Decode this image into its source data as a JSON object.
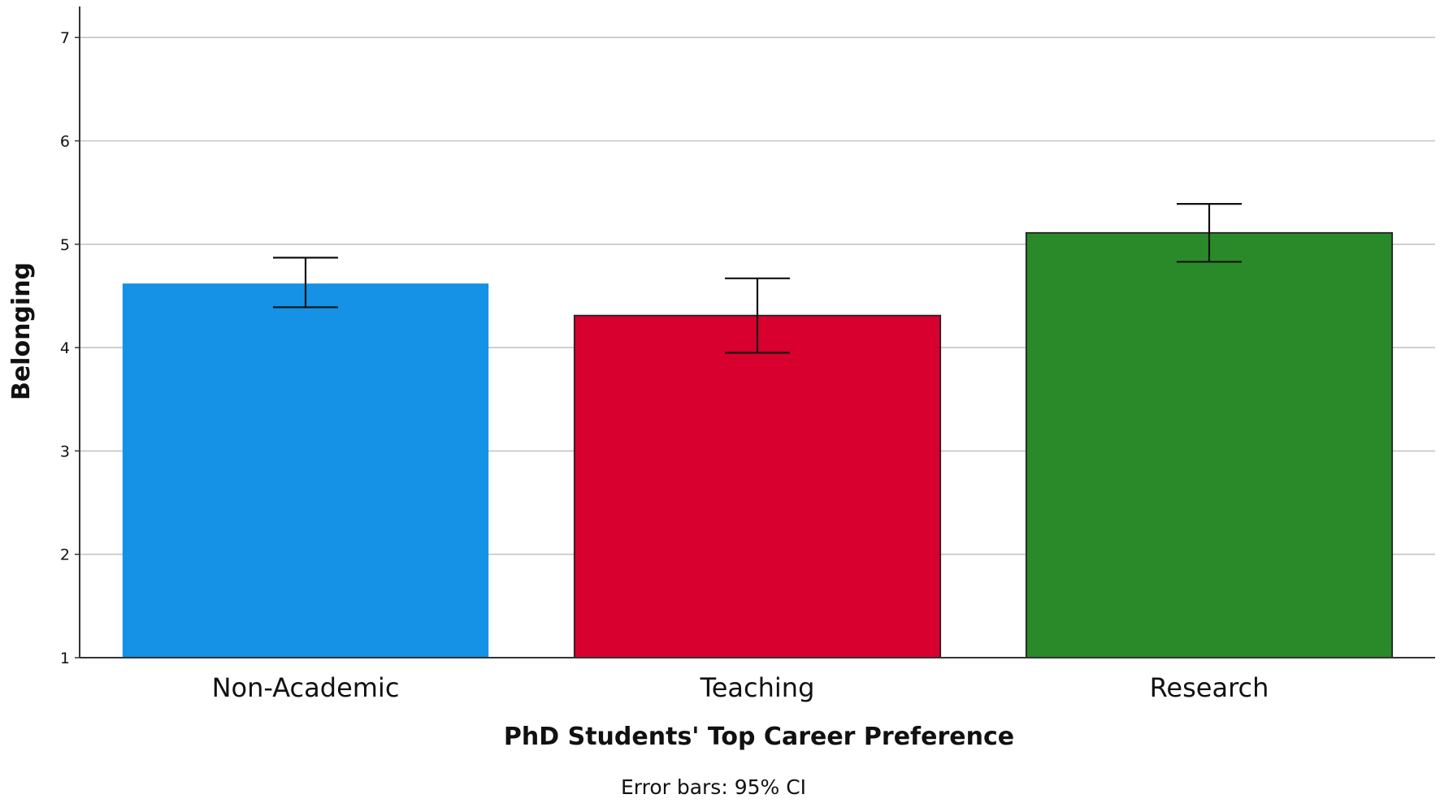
{
  "chart_data": {
    "type": "bar",
    "categories": [
      "Non-Academic",
      "Teaching",
      "Research"
    ],
    "values": [
      4.62,
      4.31,
      5.11
    ],
    "ci_lower": [
      4.39,
      3.95,
      4.83
    ],
    "ci_upper": [
      4.87,
      4.67,
      5.39
    ],
    "colors": [
      "#1591e5",
      "#d8002f",
      "#2a8a2a"
    ],
    "xlabel": "PhD Students' Top Career Preference",
    "ylabel": "Belonging",
    "ylim": [
      1,
      7.3
    ],
    "yticks": [
      1,
      2,
      3,
      4,
      5,
      6,
      7
    ],
    "grid": true,
    "note": "Error bars: 95% CI"
  }
}
